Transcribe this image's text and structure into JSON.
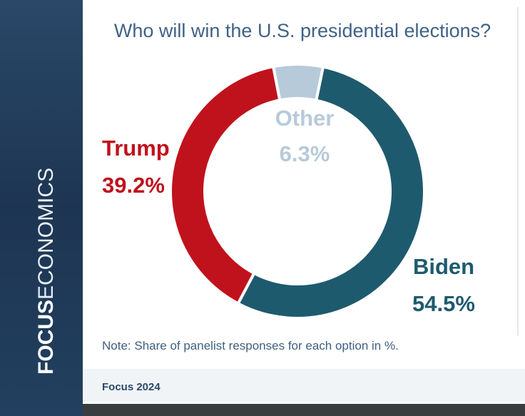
{
  "brand": {
    "strong": "FOCUS",
    "light": "ECONOMICS"
  },
  "footer": "Focus 2024",
  "chart_data": {
    "type": "donut",
    "title": "Who will win the U.S. presidential elections?",
    "categories": [
      "Other",
      "Biden",
      "Trump"
    ],
    "values": [
      6.3,
      54.5,
      39.2
    ],
    "value_labels": [
      "6.3%",
      "54.5%",
      "39.2%"
    ],
    "colors": [
      "#b7cad9",
      "#1e5a6e",
      "#c0121c"
    ],
    "label_colors": [
      "#b7cad9",
      "#1e5a6e",
      "#c0121c"
    ],
    "note": "Note: Share of panelist responses for each option in %."
  }
}
